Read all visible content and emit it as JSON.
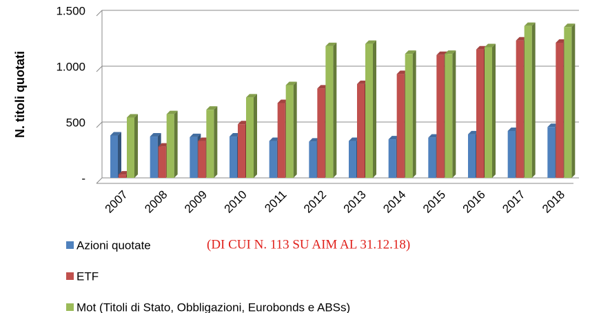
{
  "chart_data": {
    "type": "bar",
    "y_label": "N. titoli quotati",
    "annotation": "(DI CUI N. 113 SU AIM AL 31.12.18)",
    "categories": [
      "2007",
      "2008",
      "2009",
      "2010",
      "2011",
      "2012",
      "2013",
      "2014",
      "2015",
      "2016",
      "2017",
      "2018"
    ],
    "series": [
      {
        "name": "Azioni quotate",
        "color": "#4f81bd",
        "values": [
          380,
          370,
          365,
          370,
          330,
          325,
          330,
          345,
          360,
          390,
          420,
          455
        ]
      },
      {
        "name": "ETF",
        "color": "#c0504d",
        "values": [
          30,
          280,
          330,
          480,
          670,
          800,
          840,
          930,
          1100,
          1150,
          1230,
          1210
        ]
      },
      {
        "name": "Mot (Titoli di Stato, Obbligazioni, Eurobonds e ABSs)",
        "color": "#9bbb59",
        "values": [
          540,
          570,
          610,
          720,
          830,
          1180,
          1200,
          1110,
          1110,
          1170,
          1360,
          1350
        ]
      }
    ],
    "ylim": [
      0,
      1500
    ],
    "yticks": [
      {
        "value": 0,
        "label": "-"
      },
      500,
      {
        "value": 1000,
        "label": "1.000"
      },
      {
        "value": 1500,
        "label": "1.500"
      }
    ],
    "grid": true
  }
}
